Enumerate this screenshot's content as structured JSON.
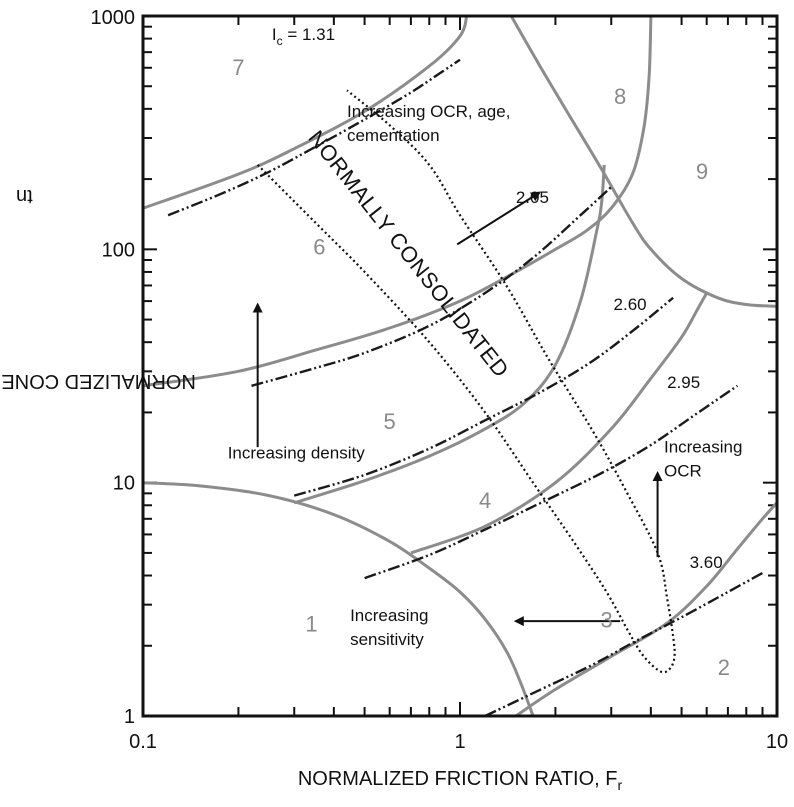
{
  "chart_data": {
    "type": "line",
    "x_axis": {
      "label": "NORMALIZED FRICTION RATIO, F",
      "label_sub": "r",
      "scale": "log",
      "range": [
        0.1,
        10
      ],
      "ticks": [
        "0.1",
        "1",
        "10"
      ]
    },
    "y_axis": {
      "label": "NORMALIZED CONE RESISTANCE, Q",
      "label_sub": "tn",
      "scale": "log",
      "range": [
        1,
        1000
      ],
      "ticks": [
        "1",
        "10",
        "100",
        "1000"
      ]
    },
    "grid": "minor tick marks only",
    "zones": [
      {
        "label": "1",
        "x": 0.34,
        "y": 2.3
      },
      {
        "label": "2",
        "x": 6.8,
        "y": 1.5
      },
      {
        "label": "3",
        "x": 2.9,
        "y": 2.4
      },
      {
        "label": "4",
        "x": 1.2,
        "y": 7.8
      },
      {
        "label": "5",
        "x": 0.6,
        "y": 17
      },
      {
        "label": "6",
        "x": 0.36,
        "y": 95
      },
      {
        "label": "7",
        "x": 0.2,
        "y": 560
      },
      {
        "label": "8",
        "x": 3.2,
        "y": 420
      },
      {
        "label": "9",
        "x": 5.8,
        "y": 200
      }
    ],
    "zone_boundaries": [
      {
        "id": "b1",
        "points": [
          [
            0.1,
            10
          ],
          [
            0.15,
            9.7
          ],
          [
            0.25,
            8.8
          ],
          [
            0.4,
            7.3
          ],
          [
            0.6,
            5.6
          ],
          [
            0.8,
            4.3
          ],
          [
            1.0,
            3.4
          ],
          [
            1.2,
            2.6
          ],
          [
            1.4,
            1.9
          ],
          [
            1.55,
            1.4
          ],
          [
            1.7,
            1
          ]
        ]
      },
      {
        "id": "b2",
        "points": [
          [
            0.3,
            8.2
          ],
          [
            0.5,
            10.2
          ],
          [
            0.8,
            13
          ],
          [
            1.2,
            17
          ],
          [
            1.6,
            22
          ],
          [
            2.0,
            32
          ],
          [
            2.4,
            60
          ],
          [
            2.7,
            120
          ],
          [
            2.8,
            160
          ],
          [
            2.85,
            230
          ]
        ]
      },
      {
        "id": "b3",
        "points": [
          [
            0.1,
            26
          ],
          [
            0.2,
            30
          ],
          [
            0.35,
            37
          ],
          [
            0.6,
            46
          ],
          [
            1.0,
            60
          ],
          [
            1.5,
            80
          ],
          [
            2.0,
            100
          ],
          [
            2.5,
            120
          ],
          [
            3.0,
            150
          ],
          [
            3.5,
            210
          ],
          [
            3.8,
            330
          ],
          [
            3.95,
            550
          ],
          [
            4.0,
            1000
          ]
        ]
      },
      {
        "id": "b4",
        "points": [
          [
            0.1,
            150
          ],
          [
            0.2,
            210
          ],
          [
            0.3,
            270
          ],
          [
            0.5,
            390
          ],
          [
            0.8,
            610
          ],
          [
            1.0,
            820
          ],
          [
            1.05,
            1000
          ]
        ]
      },
      {
        "id": "b5",
        "points": [
          [
            0.7,
            5.0
          ],
          [
            1.2,
            6.5
          ],
          [
            2.0,
            10
          ],
          [
            3.0,
            17
          ],
          [
            4.0,
            28
          ],
          [
            5.0,
            42
          ],
          [
            5.6,
            55
          ],
          [
            6.0,
            65
          ]
        ]
      },
      {
        "id": "b6",
        "points": [
          [
            1.5,
            1
          ],
          [
            2.0,
            1.3
          ],
          [
            3.0,
            1.8
          ],
          [
            4.5,
            2.5
          ],
          [
            6.0,
            3.6
          ],
          [
            7.5,
            5.2
          ],
          [
            9.0,
            7
          ],
          [
            10,
            8.2
          ]
        ]
      },
      {
        "id": "b7",
        "points": [
          [
            1.45,
            1000
          ],
          [
            1.8,
            600
          ],
          [
            2.2,
            380
          ],
          [
            2.8,
            220
          ],
          [
            3.5,
            130
          ],
          [
            4.0,
            100
          ],
          [
            5.0,
            75
          ],
          [
            6.5,
            62
          ],
          [
            8.0,
            58
          ],
          [
            10,
            57
          ]
        ]
      }
    ],
    "ic_contours": [
      {
        "label": "1.31",
        "label_prefix": "I",
        "label_sub": "c",
        "label_suffix": " = 1.31",
        "label_x": 0.255,
        "label_y": 790,
        "points": [
          [
            0.12,
            140
          ],
          [
            0.18,
            175
          ],
          [
            0.25,
            215
          ],
          [
            0.35,
            275
          ],
          [
            0.5,
            360
          ],
          [
            0.7,
            470
          ],
          [
            0.85,
            560
          ],
          [
            1.0,
            650
          ]
        ]
      },
      {
        "label": "2.05",
        "label_x": 1.5,
        "label_y": 158,
        "points": [
          [
            0.22,
            26
          ],
          [
            0.35,
            31
          ],
          [
            0.5,
            36
          ],
          [
            0.8,
            47
          ],
          [
            1.2,
            65
          ],
          [
            1.7,
            92
          ],
          [
            2.4,
            140
          ],
          [
            3.0,
            185
          ]
        ]
      },
      {
        "label": "2.60",
        "label_x": 3.05,
        "label_y": 55,
        "points": [
          [
            0.3,
            8.8
          ],
          [
            0.5,
            10.8
          ],
          [
            0.8,
            14
          ],
          [
            1.2,
            18.5
          ],
          [
            1.8,
            24.5
          ],
          [
            2.6,
            33
          ],
          [
            3.6,
            46
          ],
          [
            4.7,
            62
          ]
        ]
      },
      {
        "label": "2.95",
        "label_x": 4.5,
        "label_y": 25.5,
        "points": [
          [
            0.5,
            3.9
          ],
          [
            0.8,
            4.9
          ],
          [
            1.2,
            6.3
          ],
          [
            1.8,
            8.2
          ],
          [
            2.8,
            11
          ],
          [
            4.0,
            14.5
          ],
          [
            5.5,
            19.5
          ],
          [
            7.5,
            26
          ]
        ]
      },
      {
        "label": "3.60",
        "label_x": 5.3,
        "label_y": 4.3,
        "points": [
          [
            1.2,
            1
          ],
          [
            1.8,
            1.3
          ],
          [
            2.6,
            1.65
          ],
          [
            3.6,
            2.1
          ],
          [
            5.0,
            2.65
          ],
          [
            7.0,
            3.4
          ],
          [
            9.0,
            4.1
          ]
        ]
      }
    ],
    "nc_band": {
      "label": "NORMALLY CONSOLIDATED",
      "points": [
        [
          0.23,
          230
        ],
        [
          0.35,
          130
        ],
        [
          0.5,
          80
        ],
        [
          0.8,
          40
        ],
        [
          1.2,
          20
        ],
        [
          1.7,
          10
        ],
        [
          2.3,
          5.5
        ],
        [
          2.9,
          3.4
        ],
        [
          3.4,
          2.3
        ],
        [
          3.8,
          1.8
        ],
        [
          4.3,
          1.55
        ],
        [
          4.6,
          1.6
        ],
        [
          4.75,
          1.8
        ],
        [
          4.7,
          2.2
        ],
        [
          4.5,
          3.2
        ],
        [
          4.2,
          5.0
        ],
        [
          3.3,
          9.5
        ],
        [
          2.6,
          17
        ],
        [
          1.9,
          34
        ],
        [
          1.4,
          70
        ],
        [
          1.0,
          140
        ],
        [
          0.8,
          230
        ],
        [
          0.6,
          340
        ],
        [
          0.44,
          480
        ]
      ]
    },
    "annotations": [
      {
        "text_lines": [
          "Increasing OCR, age,",
          "cementation"
        ],
        "x": 0.44,
        "y": 370,
        "arrow": {
          "from": [
            0.98,
            105
          ],
          "to": [
            1.78,
            175
          ]
        }
      },
      {
        "text_lines": [
          "Increasing density"
        ],
        "x": 0.185,
        "y": 12.7,
        "arrow": {
          "from": [
            0.23,
            14.2
          ],
          "to": [
            0.23,
            58
          ]
        }
      },
      {
        "text_lines": [
          "Increasing",
          "OCR"
        ],
        "x": 4.4,
        "y": 13.5,
        "arrow": {
          "from": [
            4.2,
            4.8
          ],
          "to": [
            4.2,
            11
          ]
        }
      },
      {
        "text_lines": [
          "Increasing",
          "sensitivity"
        ],
        "x": 0.45,
        "y": 2.55,
        "arrow": {
          "from": [
            3.2,
            2.55
          ],
          "to": [
            1.5,
            2.55
          ]
        }
      }
    ],
    "colors": {
      "boundary": "#8c8c8c",
      "contour": "#1a1a1a",
      "zone_label": "#8a8a8a",
      "text": "#111111"
    }
  }
}
